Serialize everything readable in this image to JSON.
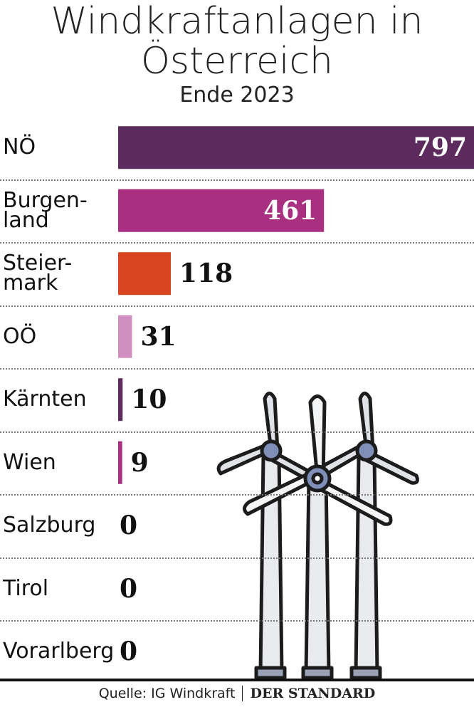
{
  "chart_data": {
    "type": "bar",
    "orientation": "horizontal",
    "title": "Windkraftanlagen in Österreich",
    "subtitle": "Ende 2023",
    "categories": [
      "NÖ",
      "Burgen-\nland",
      "Steier-\nmark",
      "OÖ",
      "Kärnten",
      "Wien",
      "Salzburg",
      "Tirol",
      "Vorarlberg"
    ],
    "values": [
      797,
      461,
      118,
      31,
      10,
      9,
      0,
      0,
      0
    ],
    "colors": [
      "#5d2b5e",
      "#a92f80",
      "#d8441f",
      "#cf8fc0",
      "#5d2b5e",
      "#a92f80",
      "#5d2b5e",
      "#5d2b5e",
      "#5d2b5e"
    ],
    "source": "Quelle: IG Windkraft",
    "publisher": "DER STANDARD"
  }
}
